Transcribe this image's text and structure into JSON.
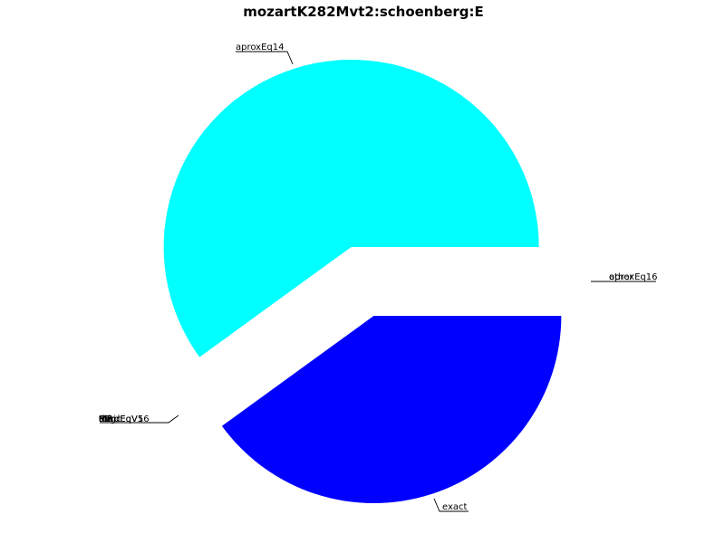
{
  "chart_data": {
    "type": "pie",
    "title": "mozartK282Mvt2:schoenberg:E",
    "slices": [
      {
        "label": "aproxEq14",
        "value": 60,
        "color": "#00ffff"
      },
      {
        "label": "exact",
        "value": 40,
        "color": "#0000ff"
      }
    ],
    "overlapping_labels": [
      {
        "group": "right",
        "labels": [
          "other",
          "aproxEq16"
        ]
      },
      {
        "group": "left",
        "labels": [
          "tonic",
          "thirdEqV5",
          "thirdEqV16",
          "M3",
          "P4",
          "P5",
          "M7",
          "aug",
          "dim"
        ]
      }
    ]
  }
}
